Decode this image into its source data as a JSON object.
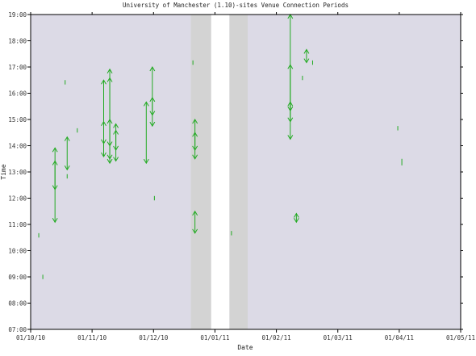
{
  "chart_data": {
    "type": "scatter",
    "title": "University of Manchester (1.10)-sites Venue Connection Periods",
    "xlabel": "Date",
    "ylabel": "Time",
    "x_range": [
      "2010-10-01",
      "2011-05-01"
    ],
    "y_range": [
      "07:00",
      "19:00"
    ],
    "x_ticks": [
      "01/10/10",
      "01/11/10",
      "01/12/10",
      "01/01/11",
      "01/02/11",
      "01/03/11",
      "01/04/11",
      "01/05/11"
    ],
    "y_ticks": [
      "07:00",
      "08:00",
      "09:00",
      "10:00",
      "11:00",
      "12:00",
      "13:00",
      "14:00",
      "15:00",
      "16:00",
      "17:00",
      "18:00",
      "19:00"
    ],
    "grid": false,
    "colors": {
      "plot_bg": "#dcdae6",
      "shaded": "#d3d3d3",
      "closed": "#ffffff",
      "mark": "#22aa22",
      "axis": "#000000"
    },
    "shaded_periods": [
      {
        "kind": "shaded",
        "start": "2010-12-19",
        "end": "2010-12-29"
      },
      {
        "kind": "closed",
        "start": "2010-12-29",
        "end": "2011-01-07"
      },
      {
        "kind": "shaded",
        "start": "2011-01-07",
        "end": "2011-01-16"
      }
    ],
    "series": [
      {
        "points": [
          {
            "date": "2010-10-05",
            "start": "10:30",
            "end": "10:40"
          },
          {
            "date": "2010-10-07",
            "start": "08:55",
            "end": "09:05"
          },
          {
            "date": "2010-10-13",
            "start": "11:05",
            "end": "13:55"
          },
          {
            "date": "2010-10-13",
            "start": "12:20",
            "end": "13:25"
          },
          {
            "date": "2010-10-18",
            "start": "16:20",
            "end": "16:30"
          },
          {
            "date": "2010-10-19",
            "start": "13:05",
            "end": "14:20"
          },
          {
            "date": "2010-10-19",
            "start": "12:45",
            "end": "12:55"
          },
          {
            "date": "2010-10-24",
            "start": "14:30",
            "end": "14:40"
          },
          {
            "date": "2010-11-06",
            "start": "13:35",
            "end": "16:30"
          },
          {
            "date": "2010-11-06",
            "start": "14:05",
            "end": "14:55"
          },
          {
            "date": "2010-11-09",
            "start": "13:30",
            "end": "16:55"
          },
          {
            "date": "2010-11-09",
            "start": "13:20",
            "end": "15:00"
          },
          {
            "date": "2010-11-09",
            "start": "14:00",
            "end": "16:35"
          },
          {
            "date": "2010-11-12",
            "start": "13:25",
            "end": "14:50"
          },
          {
            "date": "2010-11-12",
            "start": "13:50",
            "end": "14:35"
          },
          {
            "date": "2010-11-27",
            "start": "13:20",
            "end": "15:40"
          },
          {
            "date": "2010-11-30",
            "start": "14:45",
            "end": "17:00"
          },
          {
            "date": "2010-11-30",
            "start": "15:10",
            "end": "15:50"
          },
          {
            "date": "2010-12-01",
            "start": "11:55",
            "end": "12:05"
          },
          {
            "date": "2010-12-20",
            "start": "17:05",
            "end": "17:15"
          },
          {
            "date": "2010-12-21",
            "start": "13:30",
            "end": "15:00"
          },
          {
            "date": "2010-12-21",
            "start": "13:50",
            "end": "14:30"
          },
          {
            "date": "2010-12-21",
            "start": "10:40",
            "end": "11:30"
          },
          {
            "date": "2011-01-08",
            "start": "10:35",
            "end": "10:45"
          },
          {
            "date": "2011-02-06",
            "start": "14:15",
            "end": "19:00"
          },
          {
            "date": "2011-02-06",
            "start": "14:55",
            "end": "17:05"
          },
          {
            "date": "2011-02-06",
            "start": "15:20",
            "end": "15:40"
          },
          {
            "date": "2011-02-09",
            "start": "11:05",
            "end": "11:25"
          },
          {
            "date": "2011-02-12",
            "start": "16:30",
            "end": "16:40"
          },
          {
            "date": "2011-02-14",
            "start": "17:10",
            "end": "17:40"
          },
          {
            "date": "2011-02-17",
            "start": "17:05",
            "end": "17:15"
          },
          {
            "date": "2011-03-31",
            "start": "14:35",
            "end": "14:45"
          },
          {
            "date": "2011-04-02",
            "start": "13:15",
            "end": "13:30"
          }
        ]
      }
    ]
  }
}
